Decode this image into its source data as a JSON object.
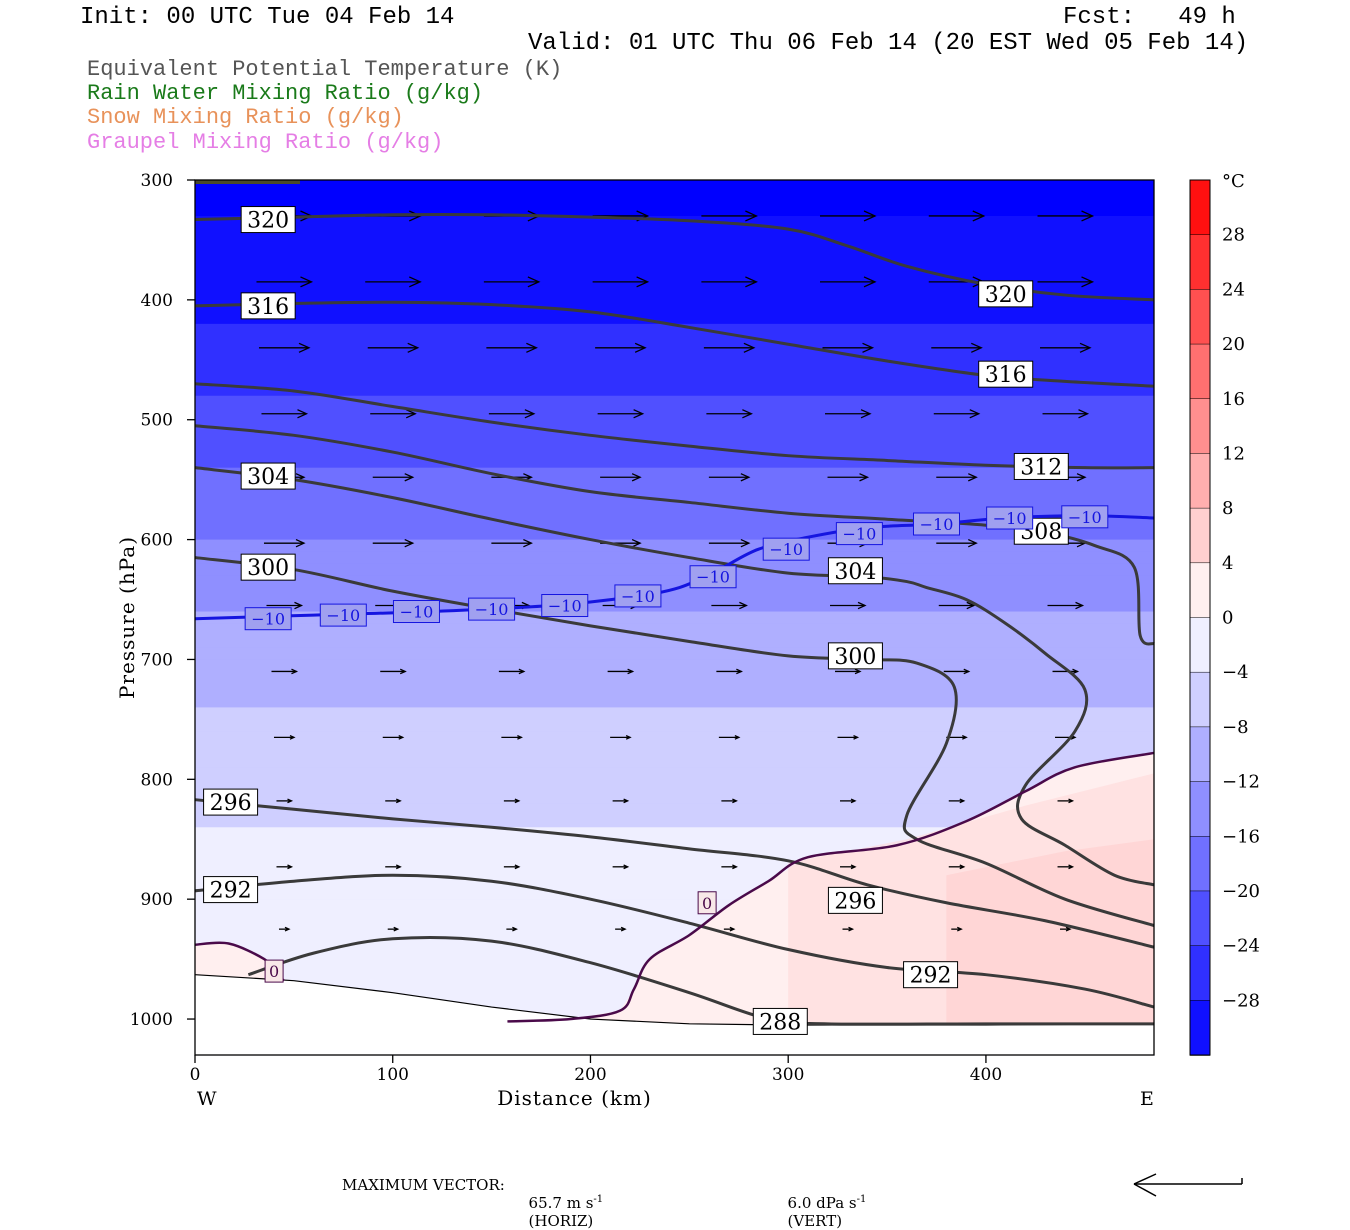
{
  "header": {
    "init": "Init: 00 UTC Tue 04 Feb 14",
    "fcst": "Fcst:   49 h",
    "valid": "Valid: 01 UTC Thu 06 Feb 14 (20 EST Wed 05 Feb 14)"
  },
  "legend": [
    {
      "text": "Equivalent Potential Temperature (K)",
      "color": "#555555"
    },
    {
      "text": "Rain Water Mixing Ratio (g/kg)",
      "color": "#1a7a1a"
    },
    {
      "text": "Snow Mixing Ratio (g/kg)",
      "color": "#e8925a"
    },
    {
      "text": "Graupel Mixing Ratio (g/kg)",
      "color": "#e57ee5"
    }
  ],
  "footer": {
    "max_vector_label": "MAXIMUM VECTOR:",
    "horiz_value": "65.7 m s",
    "horiz_unit": "(HORIZ)",
    "vert_value": "6.0 dPa s",
    "vert_unit": "(VERT)",
    "exponent": "-1"
  },
  "chart_data": {
    "type": "contour",
    "xlabel": "Distance (km)",
    "ylabel": "Pressure (hPa)",
    "xlim": [
      0,
      485
    ],
    "ylim": [
      1030,
      300
    ],
    "x_ticks": [
      0,
      100,
      200,
      300,
      400
    ],
    "y_ticks": [
      300,
      400,
      500,
      600,
      700,
      800,
      900,
      1000
    ],
    "x_end_labels": {
      "left": "W",
      "right": "E"
    },
    "colorbar": {
      "unit": "°C",
      "tick_labels": [
        "28",
        "24",
        "20",
        "16",
        "12",
        "8",
        "4",
        "0",
        "−4",
        "−8",
        "−12",
        "−16",
        "−20",
        "−24",
        "−28"
      ],
      "range": [
        -32,
        32
      ],
      "colors": {
        "cold": "#0000ff",
        "neutral": "#ffffff",
        "warm": "#ff0000"
      }
    },
    "theta_e_contours": [
      {
        "level": "320",
        "label_positions": [
          [
            37,
            333
          ],
          [
            410,
            395
          ]
        ],
        "points": [
          [
            0,
            333
          ],
          [
            50,
            331
          ],
          [
            100,
            329
          ],
          [
            150,
            329
          ],
          [
            200,
            331
          ],
          [
            250,
            334
          ],
          [
            300,
            341
          ],
          [
            330,
            355
          ],
          [
            360,
            372
          ],
          [
            400,
            387
          ],
          [
            440,
            396
          ],
          [
            485,
            400
          ]
        ]
      },
      {
        "level": "316",
        "label_positions": [
          [
            37,
            405
          ],
          [
            410,
            462
          ]
        ],
        "points": [
          [
            0,
            405
          ],
          [
            50,
            403
          ],
          [
            100,
            402
          ],
          [
            150,
            404
          ],
          [
            200,
            410
          ],
          [
            250,
            423
          ],
          [
            300,
            437
          ],
          [
            350,
            451
          ],
          [
            400,
            463
          ],
          [
            440,
            468
          ],
          [
            485,
            472
          ]
        ]
      },
      {
        "level": "312",
        "label_positions": [
          [
            428,
            539
          ]
        ],
        "points": [
          [
            0,
            470
          ],
          [
            50,
            476
          ],
          [
            100,
            489
          ],
          [
            150,
            502
          ],
          [
            200,
            513
          ],
          [
            250,
            522
          ],
          [
            300,
            530
          ],
          [
            350,
            534
          ],
          [
            400,
            538
          ],
          [
            450,
            540
          ],
          [
            485,
            540
          ]
        ]
      },
      {
        "level": "308",
        "label_positions": [
          [
            428,
            593
          ]
        ],
        "points": [
          [
            0,
            505
          ],
          [
            50,
            513
          ],
          [
            100,
            527
          ],
          [
            150,
            545
          ],
          [
            200,
            560
          ],
          [
            250,
            569
          ],
          [
            300,
            578
          ],
          [
            350,
            583
          ],
          [
            400,
            588
          ],
          [
            430,
            594
          ],
          [
            455,
            605
          ],
          [
            475,
            623
          ],
          [
            478,
            680
          ],
          [
            485,
            687
          ]
        ]
      },
      {
        "level": "304",
        "label_positions": [
          [
            37,
            547
          ],
          [
            334,
            626
          ]
        ],
        "points": [
          [
            0,
            540
          ],
          [
            50,
            550
          ],
          [
            100,
            565
          ],
          [
            150,
            583
          ],
          [
            200,
            600
          ],
          [
            250,
            615
          ],
          [
            300,
            628
          ],
          [
            340,
            631
          ],
          [
            360,
            635
          ],
          [
            370,
            640
          ],
          [
            390,
            650
          ],
          [
            410,
            670
          ],
          [
            430,
            695
          ],
          [
            450,
            725
          ],
          [
            445,
            760
          ],
          [
            420,
            805
          ],
          [
            418,
            833
          ],
          [
            440,
            855
          ],
          [
            465,
            880
          ],
          [
            485,
            888
          ]
        ]
      },
      {
        "level": "300",
        "label_positions": [
          [
            37,
            623
          ],
          [
            334,
            697
          ]
        ],
        "points": [
          [
            0,
            615
          ],
          [
            50,
            625
          ],
          [
            100,
            643
          ],
          [
            150,
            658
          ],
          [
            200,
            672
          ],
          [
            250,
            685
          ],
          [
            300,
            697
          ],
          [
            340,
            700
          ],
          [
            365,
            703
          ],
          [
            384,
            723
          ],
          [
            380,
            770
          ],
          [
            360,
            830
          ],
          [
            365,
            850
          ],
          [
            400,
            870
          ],
          [
            440,
            900
          ],
          [
            485,
            922
          ]
        ]
      },
      {
        "level": "296",
        "label_positions": [
          [
            18,
            819
          ],
          [
            334,
            901
          ]
        ],
        "points": [
          [
            0,
            817
          ],
          [
            50,
            825
          ],
          [
            100,
            833
          ],
          [
            150,
            840
          ],
          [
            200,
            848
          ],
          [
            250,
            858
          ],
          [
            300,
            868
          ],
          [
            340,
            888
          ],
          [
            380,
            903
          ],
          [
            430,
            918
          ],
          [
            485,
            940
          ]
        ]
      },
      {
        "level": "292",
        "label_positions": [
          [
            18,
            892
          ],
          [
            372,
            963
          ]
        ],
        "points": [
          [
            0,
            893
          ],
          [
            50,
            885
          ],
          [
            100,
            880
          ],
          [
            150,
            885
          ],
          [
            200,
            900
          ],
          [
            250,
            920
          ],
          [
            300,
            942
          ],
          [
            350,
            957
          ],
          [
            400,
            963
          ],
          [
            450,
            975
          ],
          [
            485,
            990
          ]
        ]
      },
      {
        "level": "288",
        "label_positions": [
          [
            296,
            1002
          ]
        ],
        "points": [
          [
            27,
            963
          ],
          [
            60,
            945
          ],
          [
            100,
            933
          ],
          [
            150,
            935
          ],
          [
            200,
            953
          ],
          [
            250,
            978
          ],
          [
            290,
            1000
          ],
          [
            320,
            1004
          ],
          [
            400,
            1004
          ],
          [
            485,
            1004
          ]
        ]
      }
    ],
    "isotherm_minus10": {
      "level": "−10",
      "label_positions": [
        [
          37,
          666
        ],
        [
          75,
          663
        ],
        [
          112,
          660
        ],
        [
          150,
          658
        ],
        [
          187,
          655
        ],
        [
          224,
          647
        ],
        [
          262,
          631
        ],
        [
          299,
          608
        ],
        [
          336,
          595
        ],
        [
          375,
          587
        ],
        [
          412,
          582
        ],
        [
          450,
          581
        ]
      ],
      "points": [
        [
          0,
          666
        ],
        [
          60,
          663
        ],
        [
          120,
          660
        ],
        [
          180,
          655
        ],
        [
          220,
          648
        ],
        [
          245,
          640
        ],
        [
          265,
          625
        ],
        [
          285,
          608
        ],
        [
          310,
          598
        ],
        [
          340,
          590
        ],
        [
          375,
          587
        ],
        [
          410,
          582
        ],
        [
          450,
          580
        ],
        [
          485,
          582
        ]
      ]
    },
    "isotherm_zero": {
      "level": "0",
      "label_positions": [
        [
          259,
          903
        ],
        [
          40,
          960
        ]
      ],
      "branches": [
        [
          [
            0,
            938
          ],
          [
            17,
            937
          ],
          [
            35,
            950
          ],
          [
            40,
            960
          ],
          [
            45,
            968
          ]
        ],
        [
          [
            158,
            1002
          ],
          [
            190,
            1000
          ],
          [
            215,
            993
          ],
          [
            222,
            975
          ],
          [
            230,
            950
          ],
          [
            250,
            930
          ],
          [
            270,
            905
          ],
          [
            290,
            885
          ],
          [
            310,
            865
          ],
          [
            355,
            855
          ],
          [
            390,
            835
          ],
          [
            420,
            810
          ],
          [
            445,
            790
          ],
          [
            485,
            778
          ]
        ]
      ]
    },
    "wind_vectors": [
      {
        "p": 330,
        "x": [
          45,
          100,
          160,
          215,
          270,
          330,
          385,
          440
        ],
        "u": [
          55,
          55,
          55,
          55,
          55,
          55,
          55,
          55
        ]
      },
      {
        "p": 385,
        "x": [
          45,
          100,
          160,
          215,
          270,
          330,
          385,
          440
        ],
        "u": [
          55,
          55,
          55,
          55,
          55,
          55,
          55,
          55
        ]
      },
      {
        "p": 440,
        "x": [
          45,
          100,
          160,
          215,
          270,
          330,
          385,
          440
        ],
        "u": [
          50,
          50,
          50,
          50,
          50,
          50,
          50,
          50
        ]
      },
      {
        "p": 495,
        "x": [
          45,
          100,
          160,
          215,
          270,
          330,
          385,
          440
        ],
        "u": [
          45,
          45,
          45,
          45,
          45,
          45,
          45,
          45
        ]
      },
      {
        "p": 548,
        "x": [
          45,
          100,
          160,
          215,
          270,
          330,
          385,
          440
        ],
        "u": [
          40,
          40,
          40,
          40,
          40,
          40,
          40,
          40
        ]
      },
      {
        "p": 603,
        "x": [
          45,
          100,
          160,
          215,
          270,
          330,
          385,
          440
        ],
        "u": [
          40,
          40,
          40,
          40,
          40,
          40,
          40,
          40
        ]
      },
      {
        "p": 655,
        "x": [
          45,
          100,
          160,
          215,
          270,
          330,
          385,
          440
        ],
        "u": [
          35,
          35,
          35,
          35,
          35,
          35,
          35,
          35
        ]
      },
      {
        "p": 710,
        "x": [
          45,
          100,
          160,
          215,
          270,
          330,
          385,
          440
        ],
        "u": [
          25,
          25,
          25,
          25,
          25,
          25,
          25,
          25
        ]
      },
      {
        "p": 765,
        "x": [
          45,
          100,
          160,
          215,
          270,
          330,
          385,
          440
        ],
        "u": [
          20,
          20,
          20,
          20,
          20,
          20,
          20,
          20
        ]
      },
      {
        "p": 818,
        "x": [
          45,
          100,
          160,
          215,
          270,
          330,
          385,
          440
        ],
        "u": [
          15,
          15,
          15,
          15,
          15,
          15,
          15,
          15
        ]
      },
      {
        "p": 873,
        "x": [
          45,
          100,
          160,
          215,
          270,
          330,
          385,
          440
        ],
        "u": [
          15,
          15,
          15,
          15,
          15,
          15,
          15,
          15
        ]
      },
      {
        "p": 925,
        "x": [
          45,
          100,
          160,
          215,
          270,
          330,
          385,
          440
        ],
        "u": [
          10,
          10,
          10,
          10,
          10,
          10,
          10,
          10
        ]
      }
    ],
    "ground_pressure": [
      [
        0,
        963
      ],
      [
        50,
        968
      ],
      [
        100,
        978
      ],
      [
        150,
        990
      ],
      [
        200,
        1000
      ],
      [
        250,
        1004
      ],
      [
        300,
        1005
      ],
      [
        400,
        1005
      ],
      [
        485,
        1004
      ]
    ],
    "temperature_field_c": {
      "profile": [
        [
          300,
          -31
        ],
        [
          360,
          -29
        ],
        [
          420,
          -26
        ],
        [
          480,
          -22
        ],
        [
          540,
          -18
        ],
        [
          600,
          -14
        ],
        [
          660,
          -10
        ],
        [
          720,
          -7
        ],
        [
          780,
          -4
        ],
        [
          840,
          -2
        ],
        [
          900,
          0
        ],
        [
          960,
          0
        ],
        [
          1000,
          0
        ]
      ]
    }
  }
}
